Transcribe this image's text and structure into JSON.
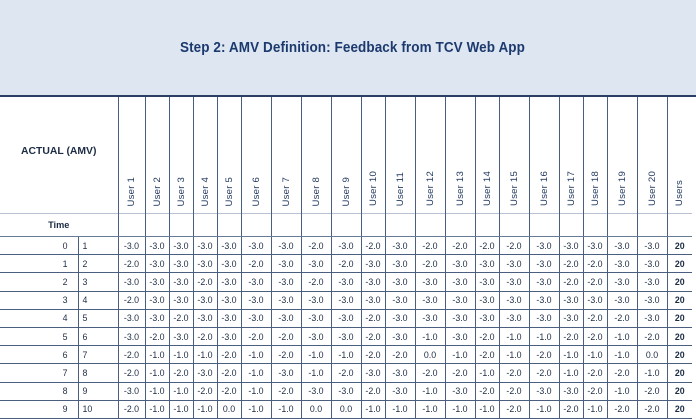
{
  "title": "Step 2: AMV Definition: Feedback from TCV Web App",
  "header": {
    "actual_label": "ACTUAL (AMV)",
    "time_label": "Time",
    "users": [
      "User 1",
      "User 2",
      "User 3",
      "User 4",
      "User 5",
      "User 6",
      "User 7",
      "User 8",
      "User 9",
      "User 10",
      "User 11",
      "User 12",
      "User 13",
      "User 14",
      "User 15",
      "User 16",
      "User 17",
      "User 18",
      "User 19",
      "User 20",
      "Users"
    ]
  },
  "rows": [
    {
      "actual": "0",
      "time": "1",
      "values": [
        "-3.0",
        "-3.0",
        "-3.0",
        "-3.0",
        "-3.0",
        "-3.0",
        "-3.0",
        "-2.0",
        "-3.0",
        "-2.0",
        "-3.0",
        "-2.0",
        "-2.0",
        "-2.0",
        "-2.0",
        "-3.0",
        "-3.0",
        "-3.0",
        "-3.0",
        "-3.0"
      ],
      "count": "20"
    },
    {
      "actual": "1",
      "time": "2",
      "values": [
        "-2.0",
        "-3.0",
        "-3.0",
        "-3.0",
        "-3.0",
        "-2.0",
        "-3.0",
        "-3.0",
        "-2.0",
        "-3.0",
        "-3.0",
        "-2.0",
        "-3.0",
        "-3.0",
        "-3.0",
        "-3.0",
        "-2.0",
        "-2.0",
        "-3.0",
        "-3.0"
      ],
      "count": "20"
    },
    {
      "actual": "2",
      "time": "3",
      "values": [
        "-3.0",
        "-3.0",
        "-3.0",
        "-2.0",
        "-3.0",
        "-3.0",
        "-3.0",
        "-2.0",
        "-3.0",
        "-3.0",
        "-3.0",
        "-3.0",
        "-3.0",
        "-3.0",
        "-3.0",
        "-3.0",
        "-2.0",
        "-2.0",
        "-3.0",
        "-3.0"
      ],
      "count": "20"
    },
    {
      "actual": "3",
      "time": "4",
      "values": [
        "-2.0",
        "-3.0",
        "-3.0",
        "-3.0",
        "-3.0",
        "-3.0",
        "-3.0",
        "-3.0",
        "-3.0",
        "-3.0",
        "-3.0",
        "-3.0",
        "-3.0",
        "-3.0",
        "-3.0",
        "-3.0",
        "-3.0",
        "-3.0",
        "-3.0",
        "-3.0"
      ],
      "count": "20"
    },
    {
      "actual": "4",
      "time": "5",
      "values": [
        "-3.0",
        "-3.0",
        "-2.0",
        "-3.0",
        "-3.0",
        "-3.0",
        "-3.0",
        "-3.0",
        "-3.0",
        "-2.0",
        "-3.0",
        "-3.0",
        "-3.0",
        "-3.0",
        "-3.0",
        "-3.0",
        "-3.0",
        "-2.0",
        "-2.0",
        "-3.0"
      ],
      "count": "20"
    },
    {
      "actual": "5",
      "time": "6",
      "values": [
        "-3.0",
        "-2.0",
        "-3.0",
        "-2.0",
        "-3.0",
        "-2.0",
        "-2.0",
        "-3.0",
        "-3.0",
        "-2.0",
        "-3.0",
        "-1.0",
        "-3.0",
        "-2.0",
        "-1.0",
        "-1.0",
        "-2.0",
        "-2.0",
        "-1.0",
        "-2.0"
      ],
      "count": "20"
    },
    {
      "actual": "6",
      "time": "7",
      "values": [
        "-2.0",
        "-1.0",
        "-1.0",
        "-1.0",
        "-2.0",
        "-1.0",
        "-2.0",
        "-1.0",
        "-1.0",
        "-2.0",
        "-2.0",
        "0.0",
        "-1.0",
        "-2.0",
        "-1.0",
        "-2.0",
        "-1.0",
        "-1.0",
        "-1.0",
        "0.0"
      ],
      "count": "20"
    },
    {
      "actual": "7",
      "time": "8",
      "values": [
        "-2.0",
        "-1.0",
        "-2.0",
        "-3.0",
        "-2.0",
        "-1.0",
        "-3.0",
        "-1.0",
        "-2.0",
        "-3.0",
        "-3.0",
        "-2.0",
        "-2.0",
        "-1.0",
        "-2.0",
        "-2.0",
        "-1.0",
        "-2.0",
        "-2.0",
        "-1.0"
      ],
      "count": "20"
    },
    {
      "actual": "8",
      "time": "9",
      "values": [
        "-3.0",
        "-1.0",
        "-1.0",
        "-2.0",
        "-2.0",
        "-1.0",
        "-2.0",
        "-3.0",
        "-3.0",
        "-2.0",
        "-3.0",
        "-1.0",
        "-3.0",
        "-2.0",
        "-2.0",
        "-3.0",
        "-3.0",
        "-2.0",
        "-1.0",
        "-2.0"
      ],
      "count": "20"
    },
    {
      "actual": "9",
      "time": "10",
      "values": [
        "-2.0",
        "-1.0",
        "-1.0",
        "-1.0",
        "0.0",
        "-1.0",
        "-1.0",
        "0.0",
        "0.0",
        "-1.0",
        "-1.0",
        "-1.0",
        "-1.0",
        "-1.0",
        "-2.0",
        "-1.0",
        "-2.0",
        "-1.0",
        "-2.0",
        "-2.0"
      ],
      "count": "20"
    }
  ]
}
